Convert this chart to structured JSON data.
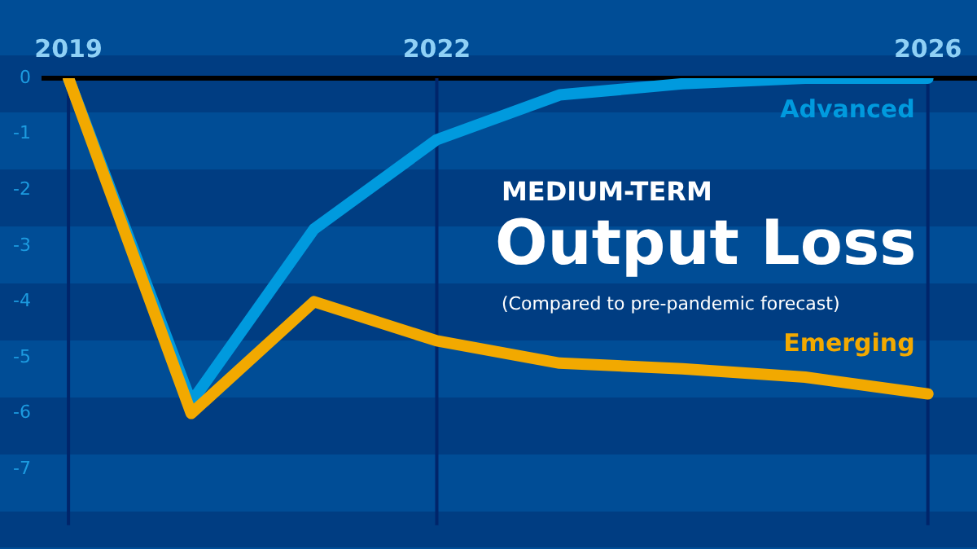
{
  "chart_data": {
    "type": "line",
    "title": "Output Loss",
    "subtitle": "(Compared to pre-pandemic forecast)",
    "annotations": [
      "MEDIUM-TERM"
    ],
    "x": [
      2019,
      2020,
      2021,
      2022,
      2023,
      2024,
      2025,
      2026
    ],
    "series": [
      {
        "name": "Advanced",
        "color": "#009ade",
        "values": [
          0,
          -5.8,
          -2.7,
          -1.1,
          -0.3,
          -0.1,
          0,
          0
        ]
      },
      {
        "name": "Emerging",
        "color": "#f2a900",
        "values": [
          0,
          -6.0,
          -4.0,
          -4.7,
          -5.1,
          -5.2,
          -5.35,
          -5.65
        ]
      }
    ],
    "xlim": [
      2018.8,
      2026.4
    ],
    "xticks": [
      2019,
      2022,
      2026
    ],
    "ylim": [
      -8,
      0
    ],
    "yticks": [
      0,
      -1,
      -2,
      -3,
      -4,
      -5,
      -6,
      -7
    ],
    "grid": "x",
    "legend": false,
    "marker": "none",
    "line_style": "solid"
  }
}
